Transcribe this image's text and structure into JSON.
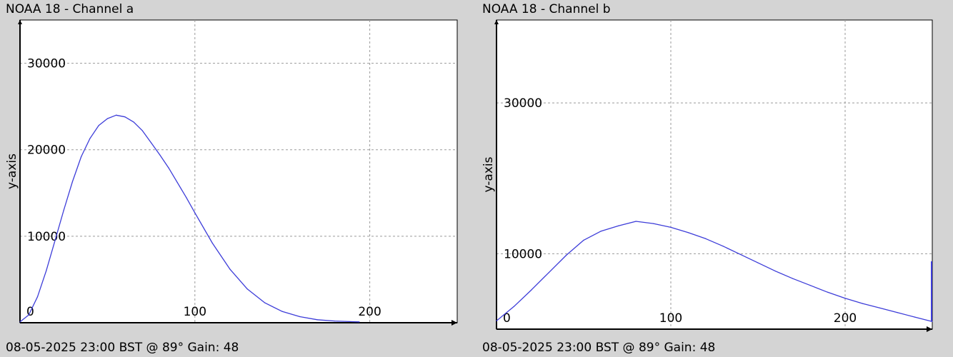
{
  "chart_data": [
    {
      "type": "line",
      "title": "NOAA 18 - Channel a",
      "footer": "08-05-2025 23:00 BST @ 89° Gain: 48",
      "ylabel": "y-axis",
      "xlabel": "",
      "xlim": [
        0,
        250
      ],
      "ylim": [
        0,
        35000
      ],
      "xticks": [
        0,
        100,
        200
      ],
      "xtick_labels": [
        "0",
        "100",
        "200"
      ],
      "yticks": [
        10000,
        20000,
        30000
      ],
      "ytick_labels": [
        "10000",
        "20000",
        "30000"
      ],
      "grid": true,
      "series": [
        {
          "color": "#3d3dd9",
          "x": [
            0,
            5,
            10,
            15,
            20,
            25,
            30,
            35,
            40,
            45,
            50,
            55,
            60,
            65,
            70,
            75,
            80,
            85,
            90,
            95,
            100,
            110,
            120,
            130,
            140,
            150,
            160,
            170,
            180,
            190,
            194
          ],
          "y": [
            100,
            900,
            3000,
            6000,
            9500,
            13000,
            16300,
            19200,
            21300,
            22800,
            23600,
            24000,
            23800,
            23200,
            22200,
            20800,
            19400,
            17900,
            16200,
            14500,
            12700,
            9200,
            6200,
            3900,
            2300,
            1300,
            700,
            350,
            200,
            120,
            100
          ]
        }
      ]
    },
    {
      "type": "line",
      "title": "NOAA 18 - Channel b",
      "footer": "08-05-2025 23:00 BST @ 89° Gain: 48",
      "ylabel": "y-axis",
      "xlabel": "",
      "xlim": [
        0,
        250
      ],
      "ylim": [
        0,
        41000
      ],
      "xticks": [
        0,
        100,
        200
      ],
      "xtick_labels": [
        "0",
        "100",
        "200"
      ],
      "yticks": [
        10000,
        30000
      ],
      "ytick_labels": [
        "10000",
        "30000"
      ],
      "grid": true,
      "series": [
        {
          "color": "#3d3dd9",
          "x": [
            0,
            10,
            20,
            30,
            40,
            50,
            60,
            70,
            80,
            90,
            100,
            110,
            120,
            130,
            140,
            150,
            160,
            170,
            180,
            190,
            200,
            210,
            220,
            230,
            240,
            250
          ],
          "y": [
            1100,
            3000,
            5200,
            7500,
            9800,
            11800,
            13000,
            13700,
            14300,
            14000,
            13500,
            12800,
            12000,
            11000,
            9900,
            8800,
            7700,
            6700,
            5800,
            4900,
            4100,
            3400,
            2800,
            2200,
            1600,
            1000
          ]
        }
      ]
    }
  ]
}
